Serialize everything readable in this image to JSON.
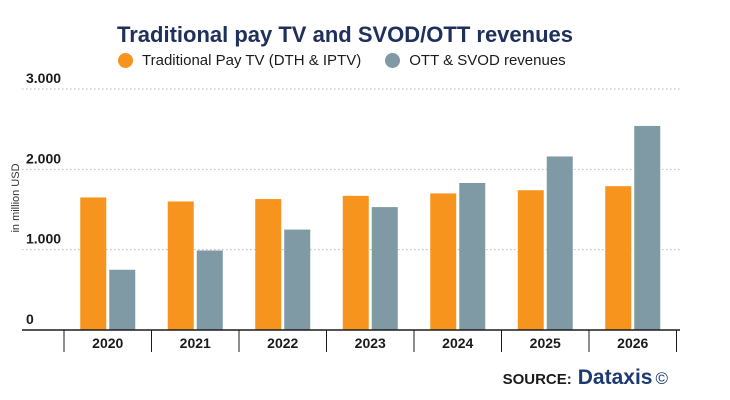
{
  "chart_data": {
    "type": "bar",
    "title": "Traditional pay TV and SVOD/OTT revenues",
    "ylabel": "in million USD",
    "categories": [
      "2020",
      "2021",
      "2022",
      "2023",
      "2024",
      "2025",
      "2026"
    ],
    "ylim": [
      0,
      3000
    ],
    "yticks": [
      0,
      1000,
      2000,
      3000
    ],
    "ytick_labels": [
      "0",
      "1.000",
      "2.000",
      "3.000"
    ],
    "grid": "horizontal dotted",
    "legend_position": "top",
    "series": [
      {
        "name": "Traditional Pay TV (DTH & IPTV)",
        "color": "#f7941d",
        "values": [
          1650,
          1600,
          1630,
          1670,
          1700,
          1740,
          1790
        ]
      },
      {
        "name": "OTT & SVOD revenues",
        "color": "#7f9aa5",
        "values": [
          750,
          990,
          1250,
          1530,
          1830,
          2160,
          2540
        ]
      }
    ]
  },
  "footer": {
    "source_label": "SOURCE:",
    "brand": "Dataxis",
    "copyright": "©"
  }
}
